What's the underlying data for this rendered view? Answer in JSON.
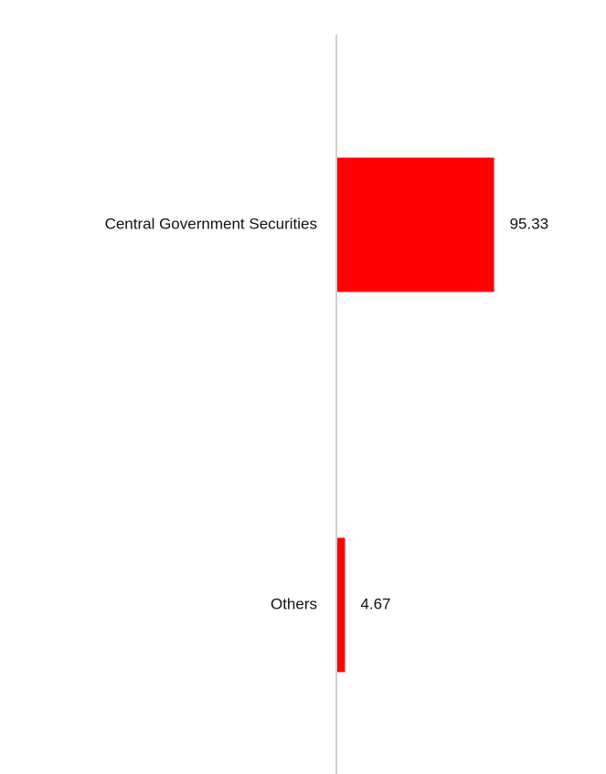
{
  "chart_data": {
    "type": "bar",
    "orientation": "horizontal",
    "categories": [
      "Central Government Securities",
      "Others"
    ],
    "values": [
      95.33,
      4.67
    ],
    "value_labels": [
      "95.33",
      "4.67"
    ],
    "xlim": [
      0,
      100
    ],
    "grid": false,
    "legend": "none",
    "bar_color": "#ff0000",
    "axis_color": "#d0d0d0"
  }
}
